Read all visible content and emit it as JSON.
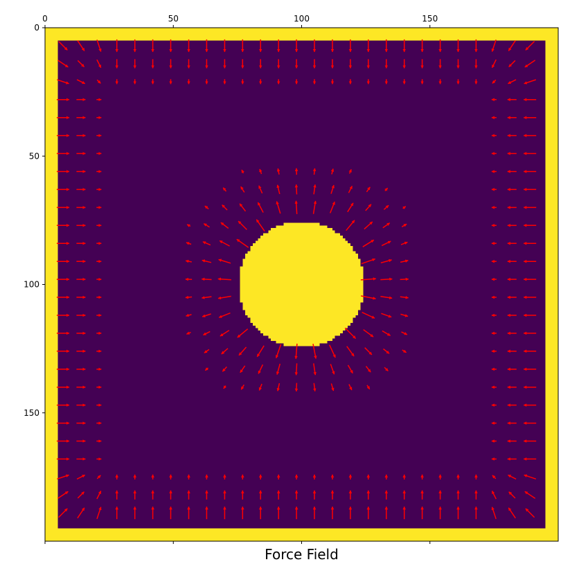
{
  "chart_data": {
    "type": "heatmap",
    "title": "",
    "xlabel": "Force Field",
    "ylabel": "",
    "grid": false,
    "legend": "none",
    "xlim": [
      0,
      200
    ],
    "ylim": [
      200,
      0
    ],
    "x_ticks_top": [
      0,
      50,
      100,
      150
    ],
    "x_ticks_bottom": [
      0,
      50,
      100,
      150
    ],
    "y_ticks": [
      0,
      50,
      100,
      150
    ],
    "x_tick_labels_top": [
      "0",
      "50",
      "100",
      "150"
    ],
    "x_tick_labels_bottom": [
      "",
      "",
      "",
      ""
    ],
    "y_tick_labels": [
      "0",
      "50",
      "100",
      "150"
    ],
    "image": {
      "colormap": "viridis",
      "low_color": "#440154",
      "high_color": "#fde725",
      "border": {
        "outer": [
          0,
          200
        ],
        "inner": [
          5,
          195
        ],
        "value": 1
      },
      "disk": {
        "center": [
          100,
          100
        ],
        "radius": 24.5,
        "value": 1
      },
      "background_value": 0
    },
    "quiver": {
      "color": "#ff0000",
      "grid_start": 7,
      "grid_step": 7,
      "grid_count": 27,
      "wall_band_depth": 3,
      "disk_band": [
        7,
        70
      ],
      "disk_exclusion_radius": 26
    }
  }
}
